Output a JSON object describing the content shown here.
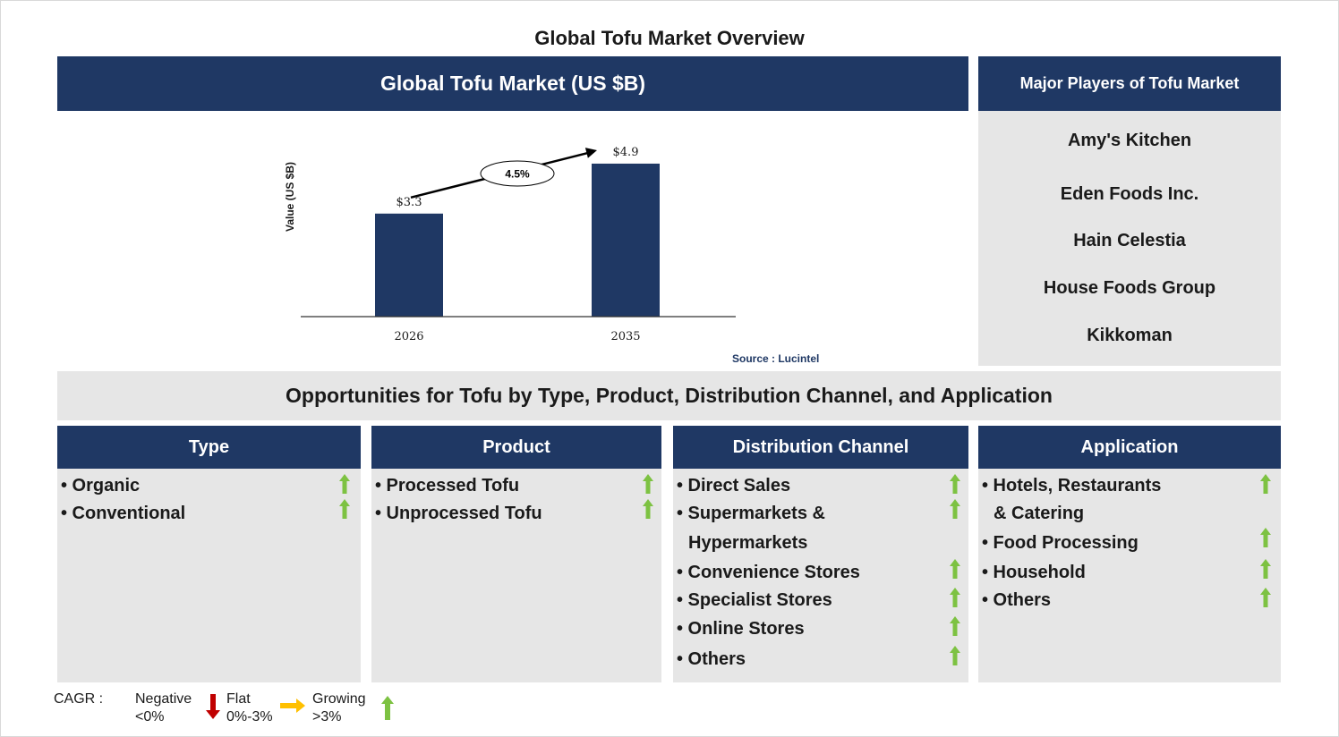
{
  "title": "Global Tofu Market Overview",
  "market_header": "Global Tofu Market (US $B)",
  "players_header": "Major Players of Tofu Market",
  "players": [
    "Amy's Kitchen",
    "Eden Foods Inc.",
    "Hain Celestia",
    "House Foods Group",
    "Kikkoman"
  ],
  "source": "Source : Lucintel",
  "chart_data": {
    "type": "bar",
    "categories": [
      "2026",
      "2035"
    ],
    "values": [
      3.3,
      4.9
    ],
    "value_labels": [
      "$3.3",
      "$4.9"
    ],
    "ylabel": "Value (US $B)",
    "cagr_label": "4.5%",
    "ylim": [
      0,
      5.5
    ],
    "bar_color": "#1f3864",
    "grid": false
  },
  "opportunities_title": "Opportunities for Tofu by Type, Product, Distribution Channel, and Application",
  "columns": [
    {
      "header": "Type",
      "items": [
        {
          "lines": [
            "• Organic"
          ],
          "trend": "growing"
        },
        {
          "lines": [
            "• Conventional"
          ],
          "trend": "growing"
        }
      ]
    },
    {
      "header": "Product",
      "items": [
        {
          "lines": [
            "• Processed Tofu"
          ],
          "trend": "growing"
        },
        {
          "lines": [
            "• Unprocessed Tofu"
          ],
          "trend": "growing"
        }
      ]
    },
    {
      "header": "Distribution Channel",
      "items": [
        {
          "lines": [
            "• Direct Sales"
          ],
          "trend": "growing"
        },
        {
          "lines": [
            "• Supermarkets &",
            "Hypermarkets"
          ],
          "trend": "growing"
        },
        {
          "lines": [
            "• Convenience Stores"
          ],
          "trend": "growing"
        },
        {
          "lines": [
            "• Specialist Stores"
          ],
          "trend": "growing"
        },
        {
          "lines": [
            "• Online Stores"
          ],
          "trend": "growing"
        },
        {
          "lines": [
            "• Others"
          ],
          "trend": "growing"
        }
      ]
    },
    {
      "header": "Application",
      "items": [
        {
          "lines": [
            "• Hotels, Restaurants",
            "& Catering"
          ],
          "trend": "growing"
        },
        {
          "lines": [
            "• Food Processing"
          ],
          "trend": "growing"
        },
        {
          "lines": [
            "• Household"
          ],
          "trend": "growing"
        },
        {
          "lines": [
            "• Others"
          ],
          "trend": "growing"
        }
      ]
    }
  ],
  "legend": {
    "label": "CAGR :",
    "negative": {
      "name": "Negative",
      "range": "<0%",
      "icon": "red-down-arrow-icon"
    },
    "flat": {
      "name": "Flat",
      "range": "0%-3%",
      "icon": "yellow-right-arrow-icon"
    },
    "growing": {
      "name": "Growing",
      "range": ">3%",
      "icon": "green-up-arrow-icon"
    }
  },
  "colors": {
    "navy": "#1f3864",
    "panel_grey": "#e6e6e6",
    "growing": "#7dc242",
    "negative": "#c00000",
    "flat": "#ffc000"
  }
}
